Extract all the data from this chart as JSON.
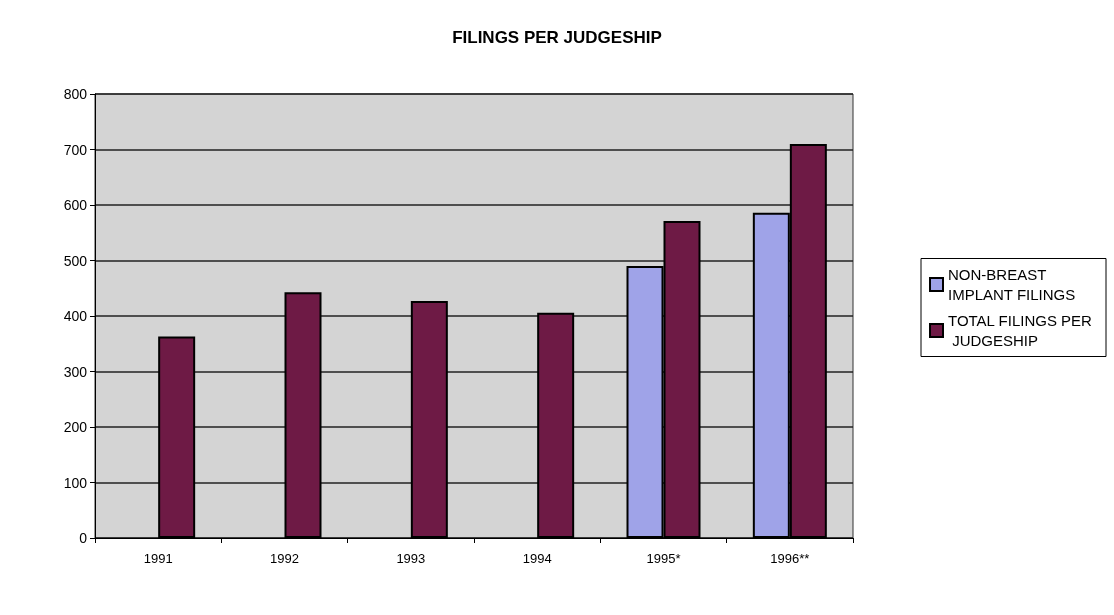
{
  "chart_data": {
    "type": "bar",
    "title": "FILINGS PER JUDGESHIP",
    "categories": [
      "1991",
      "1992",
      "1993",
      "1994",
      "1995*",
      "1996**"
    ],
    "series": [
      {
        "name": "NON-BREAST IMPLANT FILINGS",
        "color": "#9fa3e8",
        "values": [
          null,
          null,
          null,
          null,
          490,
          586
        ]
      },
      {
        "name": "TOTAL FILINGS PER JUDGESHIP",
        "color": "#6e1a45",
        "values": [
          363,
          443,
          427,
          406,
          571,
          710
        ]
      }
    ],
    "ylim": [
      0,
      800
    ],
    "yticks": [
      0,
      100,
      200,
      300,
      400,
      500,
      600,
      700,
      800
    ],
    "grid": "y",
    "legend": "right"
  }
}
